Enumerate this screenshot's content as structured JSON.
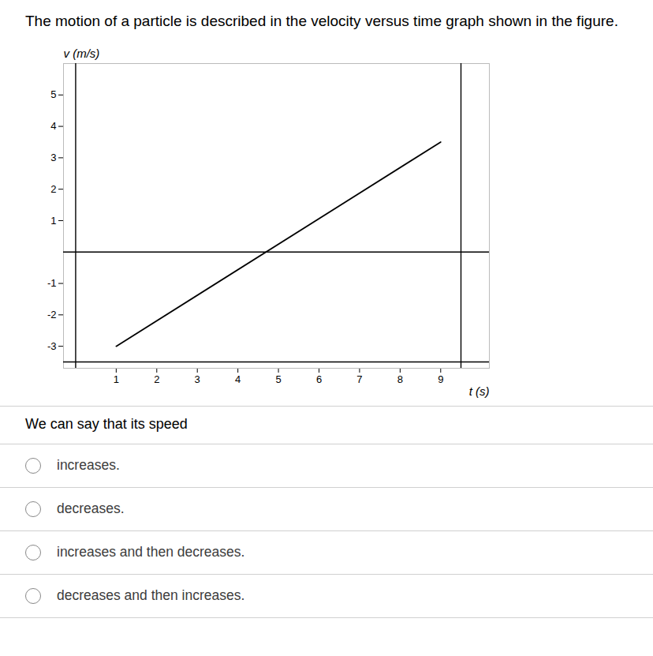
{
  "chart_data": {
    "type": "line",
    "title": "The motion of a particle is described in the velocity versus time graph shown in the figure.",
    "x_label": "t (s)",
    "y_label": "v (m/s)",
    "x": [
      1,
      9
    ],
    "values": [
      -3,
      3.5
    ],
    "color": "#000000",
    "xlim": [
      -0.3,
      10.2
    ],
    "ylim": [
      -3.7,
      6.0
    ],
    "xticks": [
      1,
      2,
      3,
      4,
      5,
      6,
      7,
      8,
      9
    ],
    "yticks": [
      -3,
      -2,
      -1,
      1,
      2,
      3,
      4,
      5
    ],
    "reference_lines": {
      "x": [
        0,
        9.5
      ],
      "y": [
        0,
        -3.5
      ]
    },
    "grid": false,
    "question": "We can say that its speed",
    "options": [
      "increases.",
      "decreases.",
      "increases and then decreases.",
      "decreases and then increases."
    ]
  }
}
